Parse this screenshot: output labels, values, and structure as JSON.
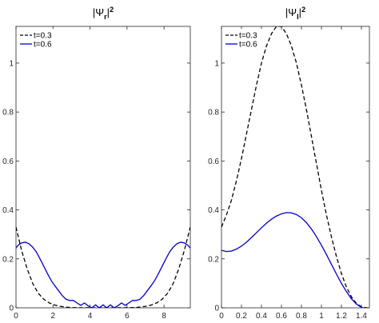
{
  "chart_data": [
    {
      "type": "line",
      "title_main": "|Ψ",
      "title_sub": "r",
      "title_sup": "2",
      "title_tail": "|",
      "xlim": [
        0,
        9.42
      ],
      "ylim": [
        0,
        1.15
      ],
      "xticks": [
        0,
        2,
        4,
        6,
        8
      ],
      "xtick_labels": [
        "0",
        "2",
        "4",
        "6",
        "8"
      ],
      "yticks": [
        0,
        0.2,
        0.4,
        0.6,
        0.8,
        1
      ],
      "ytick_labels": [
        "0",
        "0.2",
        "0.4",
        "0.6",
        "0.8",
        "1"
      ],
      "legend_position": "top-left",
      "grid": false,
      "series": [
        {
          "name": "t=0.3",
          "color": "#000000",
          "style": "dashed",
          "x": [
            0,
            0.3,
            0.6,
            0.9,
            1.2,
            1.5,
            1.8,
            2.1,
            2.4,
            2.7,
            3.0,
            3.3,
            3.6,
            3.9,
            4.2,
            4.5,
            4.71,
            4.9,
            5.2,
            5.5,
            5.8,
            6.1,
            6.4,
            6.7,
            7.0,
            7.3,
            7.6,
            7.9,
            8.2,
            8.5,
            8.8,
            9.1,
            9.42
          ],
          "y": [
            0.33,
            0.235,
            0.16,
            0.1,
            0.06,
            0.035,
            0.02,
            0.011,
            0.006,
            0.003,
            0.001,
            0.0005,
            0.0003,
            0.0002,
            0.0001,
            0.0001,
            0.0001,
            0.0001,
            0.0001,
            0.0002,
            0.0003,
            0.0005,
            0.001,
            0.003,
            0.006,
            0.011,
            0.02,
            0.035,
            0.06,
            0.1,
            0.16,
            0.235,
            0.33
          ]
        },
        {
          "name": "t=0.6",
          "color": "#0000cc",
          "style": "solid",
          "x": [
            0,
            0.15,
            0.3,
            0.5,
            0.7,
            0.9,
            1.1,
            1.3,
            1.5,
            1.7,
            1.9,
            2.1,
            2.3,
            2.5,
            2.7,
            2.9,
            3.1,
            3.3,
            3.5,
            3.7,
            3.9,
            4.1,
            4.3,
            4.5,
            4.71,
            4.9,
            5.1,
            5.3,
            5.5,
            5.7,
            5.9,
            6.1,
            6.3,
            6.5,
            6.7,
            6.9,
            7.1,
            7.3,
            7.5,
            7.7,
            7.9,
            8.1,
            8.3,
            8.5,
            8.7,
            8.9,
            9.1,
            9.25,
            9.42
          ],
          "y": [
            0.245,
            0.258,
            0.265,
            0.268,
            0.262,
            0.248,
            0.228,
            0.2,
            0.17,
            0.14,
            0.112,
            0.09,
            0.07,
            0.05,
            0.035,
            0.03,
            0.03,
            0.02,
            0.01,
            0.02,
            0.008,
            0.0,
            0.012,
            0.0,
            0.012,
            0.0,
            0.012,
            0.0,
            0.008,
            0.02,
            0.01,
            0.02,
            0.03,
            0.03,
            0.035,
            0.05,
            0.07,
            0.09,
            0.112,
            0.14,
            0.17,
            0.2,
            0.228,
            0.248,
            0.262,
            0.268,
            0.265,
            0.258,
            0.245
          ]
        }
      ]
    },
    {
      "type": "line",
      "title_main": "|Ψ",
      "title_sub": "I",
      "title_sup": "2",
      "title_tail": "|",
      "xlim": [
        0,
        1.48
      ],
      "ylim": [
        0,
        1.15
      ],
      "xticks": [
        0,
        0.2,
        0.4,
        0.6,
        0.8,
        1,
        1.2,
        1.4
      ],
      "xtick_labels": [
        "0",
        "0.2",
        "0.4",
        "0.6",
        "0.8",
        "1",
        "1.2",
        "1.4"
      ],
      "yticks": [
        0,
        0.2,
        0.4,
        0.6,
        0.8,
        1
      ],
      "ytick_labels": [
        "0",
        "0.2",
        "0.4",
        "0.6",
        "0.8",
        "1"
      ],
      "legend_position": "top-left",
      "grid": false,
      "series": [
        {
          "name": "t=0.3",
          "color": "#000000",
          "style": "dashed",
          "x": [
            0,
            0.05,
            0.1,
            0.15,
            0.2,
            0.25,
            0.3,
            0.35,
            0.4,
            0.45,
            0.5,
            0.55,
            0.6,
            0.65,
            0.7,
            0.75,
            0.8,
            0.85,
            0.9,
            0.95,
            1.0,
            1.05,
            1.1,
            1.15,
            1.2,
            1.25,
            1.3,
            1.35,
            1.4,
            1.45,
            1.48
          ],
          "y": [
            0.33,
            0.38,
            0.44,
            0.52,
            0.61,
            0.71,
            0.81,
            0.91,
            1.0,
            1.07,
            1.12,
            1.15,
            1.15,
            1.12,
            1.07,
            1.0,
            0.91,
            0.81,
            0.7,
            0.59,
            0.48,
            0.38,
            0.29,
            0.21,
            0.14,
            0.085,
            0.045,
            0.018,
            0.004,
            0.0,
            0.0
          ]
        },
        {
          "name": "t=0.6",
          "color": "#0000cc",
          "style": "solid",
          "x": [
            0,
            0.05,
            0.1,
            0.15,
            0.2,
            0.25,
            0.3,
            0.35,
            0.4,
            0.45,
            0.5,
            0.55,
            0.6,
            0.65,
            0.7,
            0.75,
            0.8,
            0.85,
            0.9,
            0.95,
            1.0,
            1.05,
            1.1,
            1.15,
            1.2,
            1.25,
            1.3,
            1.35,
            1.4,
            1.42
          ],
          "y": [
            0.235,
            0.23,
            0.232,
            0.24,
            0.252,
            0.268,
            0.287,
            0.307,
            0.327,
            0.346,
            0.362,
            0.375,
            0.384,
            0.389,
            0.388,
            0.381,
            0.368,
            0.348,
            0.322,
            0.291,
            0.256,
            0.218,
            0.178,
            0.138,
            0.1,
            0.066,
            0.037,
            0.015,
            0.002,
            0.0
          ]
        }
      ]
    }
  ]
}
